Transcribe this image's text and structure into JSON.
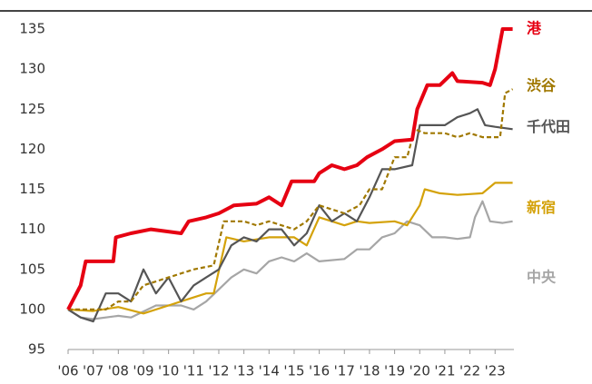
{
  "chart_data": {
    "type": "line",
    "xlim": [
      2006,
      2023.75
    ],
    "ylim": [
      95,
      135
    ],
    "yticks": [
      95,
      100,
      105,
      110,
      115,
      120,
      125,
      130,
      135
    ],
    "xticks": [
      {
        "value": 2006,
        "label": "'06"
      },
      {
        "value": 2007,
        "label": "'07"
      },
      {
        "value": 2008,
        "label": "'08"
      },
      {
        "value": 2009,
        "label": "'09"
      },
      {
        "value": 2010,
        "label": "'10"
      },
      {
        "value": 2011,
        "label": "'11"
      },
      {
        "value": 2012,
        "label": "'12"
      },
      {
        "value": 2013,
        "label": "'13"
      },
      {
        "value": 2014,
        "label": "'14"
      },
      {
        "value": 2015,
        "label": "'15"
      },
      {
        "value": 2016,
        "label": "'16"
      },
      {
        "value": 2017,
        "label": "'17"
      },
      {
        "value": 2018,
        "label": "'18"
      },
      {
        "value": 2019,
        "label": "'19"
      },
      {
        "value": 2020,
        "label": "'20"
      },
      {
        "value": 2021,
        "label": "'21"
      },
      {
        "value": 2022,
        "label": "'22"
      },
      {
        "value": 2023,
        "label": "'23"
      }
    ],
    "series": [
      {
        "name": "港",
        "color": "#e60012",
        "dash": false,
        "x": [
          2006,
          2006.5,
          2006.7,
          2007.8,
          2007.9,
          2008.5,
          2009.3,
          2010.5,
          2010.8,
          2011.5,
          2012.0,
          2012.6,
          2013.5,
          2014.0,
          2014.5,
          2014.9,
          2015.8,
          2016.0,
          2016.5,
          2017.0,
          2017.5,
          2017.9,
          2018.5,
          2019.0,
          2019.7,
          2019.9,
          2020.3,
          2020.8,
          2021.3,
          2021.5,
          2022.5,
          2022.8,
          2023.0,
          2023.3,
          2023.7
        ],
        "values": [
          100,
          103,
          106,
          106,
          109,
          109.5,
          110,
          109.5,
          111,
          111.5,
          112,
          113,
          113.2,
          114,
          113,
          116,
          116,
          117,
          118,
          117.5,
          118,
          119,
          120,
          121,
          121.2,
          125,
          128,
          128,
          129.5,
          128.5,
          128.3,
          128,
          130,
          135,
          135
        ]
      },
      {
        "name": "渋谷",
        "color": "#a07800",
        "dash": true,
        "x": [
          2006,
          2007.5,
          2008.0,
          2008.5,
          2009.0,
          2010.0,
          2011.0,
          2011.8,
          2012.2,
          2013.0,
          2013.5,
          2014.0,
          2015.0,
          2015.5,
          2016.0,
          2017.0,
          2017.6,
          2018.0,
          2018.5,
          2019.0,
          2019.5,
          2019.8,
          2020.2,
          2021.0,
          2021.5,
          2022.0,
          2022.5,
          2023.2,
          2023.4,
          2023.7
        ],
        "values": [
          100,
          100,
          101,
          101,
          103,
          104,
          105,
          105.5,
          111,
          111,
          110.5,
          111,
          110,
          111,
          113,
          112,
          113,
          115,
          115,
          119,
          119,
          122.5,
          122,
          122,
          121.5,
          122,
          121.5,
          121.5,
          127,
          127.5
        ]
      },
      {
        "name": "千代田",
        "color": "#555555",
        "dash": false,
        "x": [
          2006,
          2006.5,
          2007.0,
          2007.5,
          2008.0,
          2008.5,
          2009.0,
          2009.5,
          2010.0,
          2010.5,
          2011.0,
          2011.5,
          2012.0,
          2012.5,
          2013.0,
          2013.5,
          2014.0,
          2014.5,
          2015.0,
          2015.5,
          2016.0,
          2016.5,
          2017.0,
          2017.5,
          2018.0,
          2018.5,
          2019.0,
          2019.7,
          2020.0,
          2020.5,
          2021.0,
          2021.5,
          2022.0,
          2022.3,
          2022.6,
          2023.0,
          2023.7
        ],
        "values": [
          100,
          99,
          98.5,
          102,
          102,
          101,
          105,
          102,
          104,
          101,
          103,
          104,
          105,
          108,
          109,
          108.5,
          110,
          110,
          108,
          109.5,
          113,
          111,
          112,
          111,
          114,
          117.5,
          117.5,
          118,
          123,
          123,
          123,
          124,
          124.5,
          125,
          123,
          122.8,
          122.5
        ]
      },
      {
        "name": "新宿",
        "color": "#d4a20a",
        "dash": false,
        "x": [
          2006,
          2007.0,
          2008.0,
          2009.0,
          2010.0,
          2011.0,
          2011.5,
          2011.8,
          2012.3,
          2013.0,
          2014.0,
          2015.0,
          2015.5,
          2016.0,
          2016.5,
          2017.0,
          2017.5,
          2018.0,
          2019.0,
          2019.5,
          2020.0,
          2020.2,
          2020.8,
          2021.5,
          2022.5,
          2023.0,
          2023.7
        ],
        "values": [
          100,
          99.8,
          100.3,
          99.5,
          100.5,
          101.5,
          102,
          102,
          109,
          108.5,
          109,
          109,
          108,
          111.5,
          111,
          110.5,
          111,
          110.8,
          111,
          110.5,
          113,
          115,
          114.5,
          114.3,
          114.5,
          115.8,
          115.8
        ]
      },
      {
        "name": "中央",
        "color": "#a6a6a6",
        "dash": false,
        "x": [
          2006,
          2006.5,
          2007.0,
          2008.0,
          2008.5,
          2009.5,
          2010.5,
          2011.0,
          2011.5,
          2012.0,
          2012.5,
          2013.0,
          2013.5,
          2014.0,
          2014.5,
          2015.0,
          2015.5,
          2016.0,
          2017.0,
          2017.5,
          2018.0,
          2018.5,
          2019.0,
          2019.5,
          2020.0,
          2020.5,
          2021.0,
          2021.5,
          2022.0,
          2022.2,
          2022.5,
          2022.8,
          2023.3,
          2023.7
        ],
        "values": [
          100,
          99,
          98.8,
          99.2,
          99,
          100.5,
          100.5,
          100,
          101,
          102.5,
          104,
          105,
          104.5,
          106,
          106.5,
          106,
          107,
          106,
          106.3,
          107.5,
          107.5,
          109,
          109.5,
          111,
          110.5,
          109,
          109,
          108.8,
          109,
          111.5,
          113.5,
          111,
          110.8,
          111
        ]
      }
    ]
  }
}
